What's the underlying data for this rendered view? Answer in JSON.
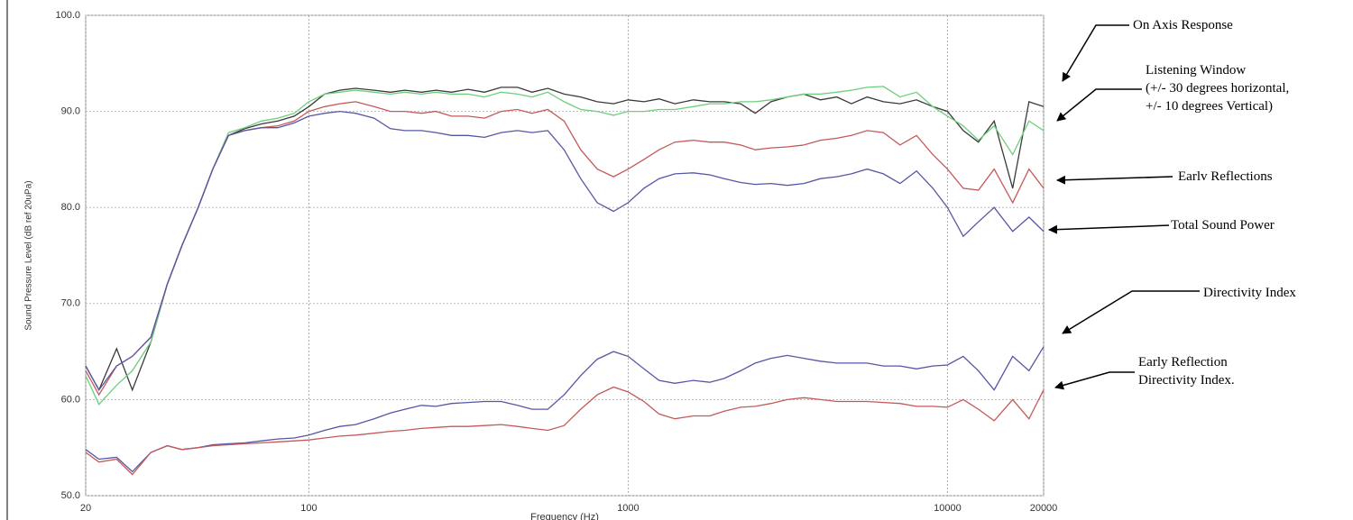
{
  "chart_data": {
    "type": "line",
    "x_label": "Frequency (Hz)",
    "y_label": "Sound Pressure Level (dB ref 20uPa)",
    "xscale": "log",
    "grid": true,
    "xlim": [
      20,
      20000
    ],
    "ylim": [
      50,
      100
    ],
    "xticks": [
      20,
      100,
      1000,
      10000,
      20000
    ],
    "yticks": [
      {
        "value": 50,
        "label": "50.0"
      },
      {
        "value": 60,
        "label": "60.0"
      },
      {
        "value": 70,
        "label": "70.0"
      },
      {
        "value": 80,
        "label": "80.0"
      },
      {
        "value": 90,
        "label": "90.0"
      },
      {
        "value": 100,
        "label": "100.0"
      }
    ],
    "x": [
      20,
      22,
      25,
      28,
      32,
      36,
      40,
      45,
      50,
      56,
      63,
      71,
      80,
      90,
      100,
      112,
      125,
      140,
      160,
      180,
      200,
      225,
      250,
      280,
      315,
      355,
      400,
      450,
      500,
      560,
      630,
      710,
      800,
      900,
      1000,
      1120,
      1250,
      1400,
      1600,
      1800,
      2000,
      2250,
      2500,
      2800,
      3150,
      3550,
      4000,
      4500,
      5000,
      5600,
      6300,
      7100,
      8000,
      9000,
      10000,
      11200,
      12500,
      14000,
      16000,
      18000,
      20000
    ],
    "series": [
      {
        "name": "On Axis Response",
        "color": "#3a3a3a",
        "values": [
          63.5,
          61,
          65.3,
          61,
          66,
          72,
          76,
          80,
          84,
          87.5,
          88.2,
          88.7,
          89,
          89.5,
          90.5,
          91.8,
          92.2,
          92.4,
          92.2,
          92,
          92.2,
          92,
          92.2,
          92,
          92.3,
          92,
          92.5,
          92.5,
          92,
          92.4,
          91.8,
          91.5,
          91,
          90.8,
          91.2,
          91,
          91.3,
          90.8,
          91.2,
          91,
          91,
          90.8,
          89.8,
          91,
          91.5,
          91.8,
          91.2,
          91.5,
          90.8,
          91.5,
          91,
          90.8,
          91.2,
          90.5,
          90,
          88,
          86.8,
          89,
          82,
          91,
          90.5
        ]
      },
      {
        "name": "Listening Window\n(+/- 30 degrees horizontal,\n+/- 10 degrees Vertical)",
        "color": "#6ccf7c",
        "values": [
          62.5,
          59.5,
          61.5,
          63,
          66,
          72,
          76,
          80,
          84,
          87.8,
          88.3,
          89,
          89.3,
          89.8,
          91,
          91.8,
          92,
          92.2,
          92,
          91.8,
          92,
          91.8,
          92,
          91.8,
          91.8,
          91.5,
          92,
          91.8,
          91.5,
          92,
          91,
          90.2,
          90,
          89.6,
          90,
          90,
          90.2,
          90.2,
          90.5,
          90.8,
          90.8,
          91,
          91,
          91.2,
          91.5,
          91.8,
          91.8,
          92,
          92.2,
          92.5,
          92.6,
          91.5,
          92,
          90.5,
          89.5,
          88.5,
          87,
          88.5,
          85.5,
          89,
          88
        ]
      },
      {
        "name": "Earlv Reflections",
        "color": "#c45a5a",
        "values": [
          63,
          60.5,
          63.5,
          64.5,
          66.5,
          72,
          76,
          80,
          84,
          87.5,
          88,
          88.3,
          88.5,
          89,
          90,
          90.5,
          90.8,
          91,
          90.5,
          90,
          90,
          89.8,
          90,
          89.5,
          89.5,
          89.3,
          90,
          90.2,
          89.8,
          90.2,
          89,
          86,
          84,
          83.2,
          84,
          85,
          86,
          86.8,
          87,
          86.8,
          86.8,
          86.5,
          86,
          86.2,
          86.3,
          86.5,
          87,
          87.2,
          87.5,
          88,
          87.8,
          86.5,
          87.5,
          85.5,
          84,
          82,
          81.8,
          84,
          80.5,
          84,
          82
        ]
      },
      {
        "name": "Total Sound Power",
        "color": "#5656a6",
        "values": [
          63.5,
          61,
          63.5,
          64.5,
          66.5,
          72,
          76,
          80,
          84,
          87.5,
          88,
          88.3,
          88.3,
          88.8,
          89.5,
          89.8,
          90,
          89.8,
          89.3,
          88.2,
          88,
          88,
          87.8,
          87.5,
          87.5,
          87.3,
          87.8,
          88,
          87.8,
          88,
          86,
          83,
          80.5,
          79.6,
          80.5,
          82,
          83,
          83.5,
          83.6,
          83.4,
          83,
          82.6,
          82.4,
          82.5,
          82.3,
          82.5,
          83,
          83.2,
          83.5,
          84,
          83.5,
          82.5,
          83.8,
          82,
          80,
          77,
          78.5,
          80,
          77.5,
          79,
          77.5
        ]
      },
      {
        "name": "Directivity Index",
        "color": "#5656a6",
        "values": [
          54.8,
          53.8,
          54,
          52.5,
          54.5,
          55.2,
          54.8,
          55,
          55.3,
          55.4,
          55.5,
          55.7,
          55.9,
          56,
          56.3,
          56.8,
          57.2,
          57.4,
          58,
          58.6,
          59,
          59.4,
          59.3,
          59.6,
          59.7,
          59.8,
          59.8,
          59.4,
          59,
          59,
          60.5,
          62.5,
          64.2,
          65,
          64.5,
          63.2,
          62,
          61.7,
          62,
          61.8,
          62.2,
          63,
          63.8,
          64.3,
          64.6,
          64.3,
          64,
          63.8,
          63.8,
          63.8,
          63.5,
          63.5,
          63.2,
          63.5,
          63.6,
          64.5,
          63,
          61,
          64.5,
          63,
          65.5
        ]
      },
      {
        "name": "Early Reflection\nDirectivity Index.",
        "color": "#c45a5a",
        "values": [
          54.5,
          53.5,
          53.8,
          52.2,
          54.5,
          55.2,
          54.8,
          55,
          55.2,
          55.3,
          55.4,
          55.5,
          55.6,
          55.7,
          55.8,
          56,
          56.2,
          56.3,
          56.5,
          56.7,
          56.8,
          57,
          57.1,
          57.2,
          57.2,
          57.3,
          57.4,
          57.2,
          57,
          56.8,
          57.3,
          59,
          60.5,
          61.3,
          60.8,
          59.8,
          58.5,
          58,
          58.3,
          58.3,
          58.8,
          59.2,
          59.3,
          59.6,
          60,
          60.2,
          60,
          59.8,
          59.8,
          59.8,
          59.7,
          59.6,
          59.3,
          59.3,
          59.2,
          60,
          59,
          57.8,
          60,
          58,
          61
        ]
      }
    ]
  }
}
